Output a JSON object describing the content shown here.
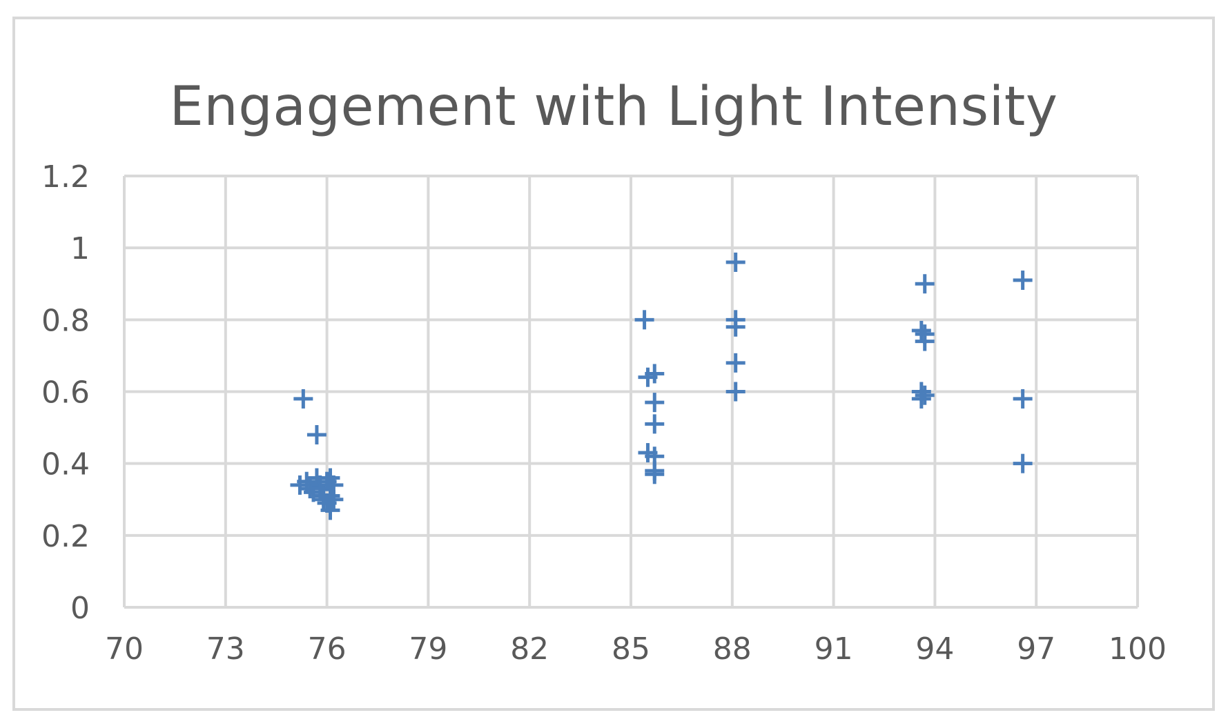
{
  "chart_data": {
    "type": "scatter",
    "title": "Engagement with Light Intensity",
    "xlabel": "",
    "ylabel": "",
    "xlim": [
      70,
      100
    ],
    "ylim": [
      0,
      1.2
    ],
    "x_ticks": [
      "70",
      "73",
      "76",
      "79",
      "82",
      "85",
      "88",
      "91",
      "94",
      "97",
      "100"
    ],
    "y_ticks": [
      "0",
      "0.2",
      "0.4",
      "0.6",
      "0.8",
      "1",
      "1.2"
    ],
    "grid": true,
    "legend": "none",
    "marker": "plus",
    "color": "#4a7ebb",
    "series": [
      {
        "points": [
          [
            75.3,
            0.58
          ],
          [
            75.7,
            0.48
          ],
          [
            75.2,
            0.34
          ],
          [
            75.4,
            0.35
          ],
          [
            75.5,
            0.33
          ],
          [
            75.6,
            0.32
          ],
          [
            75.7,
            0.36
          ],
          [
            75.8,
            0.34
          ],
          [
            75.9,
            0.31
          ],
          [
            75.8,
            0.33
          ],
          [
            76.0,
            0.35
          ],
          [
            76.1,
            0.36
          ],
          [
            76.2,
            0.34
          ],
          [
            75.9,
            0.3
          ],
          [
            76.0,
            0.29
          ],
          [
            76.1,
            0.31
          ],
          [
            76.2,
            0.3
          ],
          [
            76.1,
            0.27
          ],
          [
            85.4,
            0.8
          ],
          [
            85.5,
            0.64
          ],
          [
            85.7,
            0.65
          ],
          [
            85.7,
            0.57
          ],
          [
            85.7,
            0.51
          ],
          [
            85.5,
            0.43
          ],
          [
            85.7,
            0.42
          ],
          [
            85.7,
            0.38
          ],
          [
            85.7,
            0.37
          ],
          [
            88.1,
            0.96
          ],
          [
            88.1,
            0.8
          ],
          [
            88.1,
            0.78
          ],
          [
            88.1,
            0.68
          ],
          [
            88.1,
            0.6
          ],
          [
            93.7,
            0.9
          ],
          [
            93.6,
            0.77
          ],
          [
            93.7,
            0.76
          ],
          [
            93.7,
            0.74
          ],
          [
            93.6,
            0.6
          ],
          [
            93.7,
            0.59
          ],
          [
            93.6,
            0.58
          ],
          [
            96.6,
            0.91
          ],
          [
            96.6,
            0.58
          ],
          [
            96.6,
            0.4
          ]
        ]
      }
    ]
  }
}
